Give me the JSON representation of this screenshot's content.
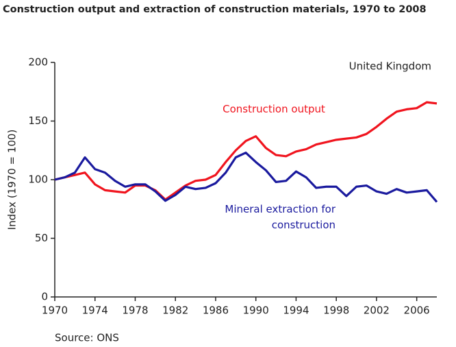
{
  "chart_data": {
    "type": "line",
    "title": "Construction output and extraction of construction materials, 1970 to 2008",
    "y_label": "Index (1970 = 100)",
    "annotation": "United Kingdom",
    "source": "Source:  ONS",
    "x": [
      1970,
      1971,
      1972,
      1973,
      1974,
      1975,
      1976,
      1977,
      1978,
      1979,
      1980,
      1981,
      1982,
      1983,
      1984,
      1985,
      1986,
      1987,
      1988,
      1989,
      1990,
      1991,
      1992,
      1993,
      1994,
      1995,
      1996,
      1997,
      1998,
      1999,
      2000,
      2001,
      2002,
      2003,
      2004,
      2005,
      2006,
      2007,
      2008
    ],
    "series": [
      {
        "name": "Construction output",
        "color": "#f0141e",
        "values": [
          100,
          102,
          104,
          106,
          96,
          91,
          90,
          89,
          95,
          95,
          91,
          83,
          89,
          95,
          99,
          100,
          104,
          115,
          125,
          133,
          137,
          127,
          121,
          120,
          124,
          126,
          130,
          132,
          134,
          135,
          136,
          139,
          145,
          152,
          158,
          160,
          161,
          166,
          165
        ]
      },
      {
        "name": "Mineral extraction for construction",
        "color": "#1a1a9e",
        "values": [
          100,
          102,
          106,
          119,
          109,
          106,
          99,
          94,
          96,
          96,
          90,
          82,
          87,
          94,
          92,
          93,
          97,
          106,
          119,
          123,
          115,
          108,
          98,
          99,
          107,
          102,
          93,
          94,
          94,
          86,
          94,
          95,
          90,
          88,
          92,
          89,
          90,
          91,
          81
        ]
      }
    ],
    "xlim": [
      1970,
      2008
    ],
    "xticks": [
      1970,
      1974,
      1978,
      1982,
      1986,
      1990,
      1994,
      1998,
      2002,
      2006
    ],
    "ylim": [
      0,
      200
    ],
    "yticks": [
      0,
      50,
      100,
      150,
      200
    ]
  }
}
